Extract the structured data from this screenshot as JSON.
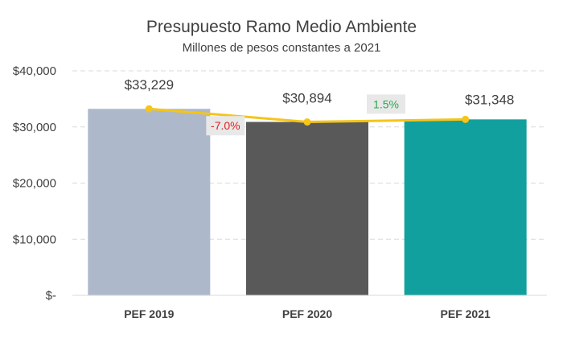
{
  "chart_data": {
    "type": "bar",
    "title": "Presupuesto Ramo Medio Ambiente",
    "subtitle": "Millones de pesos constantes a 2021",
    "categories": [
      "PEF 2019",
      "PEF 2020",
      "PEF 2021"
    ],
    "values": [
      33229,
      30894,
      31348
    ],
    "value_labels": [
      "$33,229",
      "$30,894",
      "$31,348"
    ],
    "bar_colors": [
      "#adb9ca",
      "#595959",
      "#12a09e"
    ],
    "ylim": [
      0,
      40000
    ],
    "yticks": [
      0,
      10000,
      20000,
      30000,
      40000
    ],
    "ytick_labels": [
      "$-",
      "$10,000",
      "$20,000",
      "$30,000",
      "$40,000"
    ],
    "grid": true,
    "line_overlay": {
      "color": "#f5c518",
      "values": [
        33229,
        30894,
        31348
      ]
    },
    "pct_changes": [
      {
        "label": "-7.0%",
        "color": "#e02020",
        "background": "#e8e8e8"
      },
      {
        "label": "1.5%",
        "color": "#2aa84a",
        "background": "#e8e8e8"
      }
    ]
  }
}
